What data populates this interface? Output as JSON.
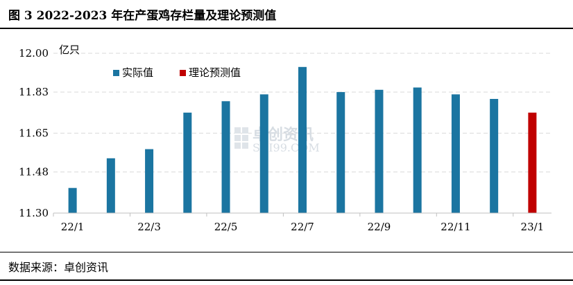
{
  "figure": {
    "title": "图 3  2022-2023 年在产蛋鸡存栏量及理论预测值",
    "source": "数据来源：卓创资讯"
  },
  "watermark": {
    "brand": "卓创资讯",
    "site": "SCI99.COM"
  },
  "colors": {
    "actual": "#1b75a1",
    "forecast": "#c00000",
    "grid": "#d9d9d9",
    "axis": "#bfbfbf"
  },
  "chart_data": {
    "type": "bar",
    "unit_label": "亿只",
    "categories": [
      "22/1",
      "22/2",
      "22/3",
      "22/4",
      "22/5",
      "22/6",
      "22/7",
      "22/8",
      "22/9",
      "22/10",
      "22/11",
      "22/12",
      "23/1"
    ],
    "x_tick_labels": [
      "22/1",
      "",
      "22/3",
      "",
      "22/5",
      "",
      "22/7",
      "",
      "22/9",
      "",
      "22/11",
      "",
      "23/1"
    ],
    "series": [
      {
        "name": "实际值",
        "color": "#1b75a1",
        "values": [
          11.41,
          11.54,
          11.58,
          11.74,
          11.79,
          11.82,
          11.94,
          11.83,
          11.84,
          11.85,
          11.82,
          11.8,
          null
        ]
      },
      {
        "name": "理论预测值",
        "color": "#c00000",
        "values": [
          null,
          null,
          null,
          null,
          null,
          null,
          null,
          null,
          null,
          null,
          null,
          null,
          11.74
        ]
      }
    ],
    "ylim": [
      11.3,
      12.0
    ],
    "y_ticks": [
      "11.30",
      "11.48",
      "11.65",
      "11.83",
      "12.00"
    ],
    "grid": true,
    "legend_position": "top-left"
  }
}
